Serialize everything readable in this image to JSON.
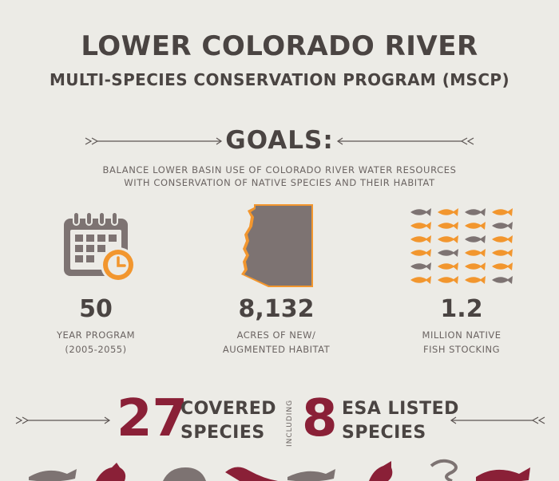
{
  "header": {
    "title": "LOWER COLORADO RIVER",
    "subtitle": "MULTI-SPECIES CONSERVATION PROGRAM (MSCP)"
  },
  "goals": {
    "heading": "GOALS:",
    "line1": "BALANCE LOWER BASIN USE OF COLORADO RIVER WATER RESOURCES",
    "line2": "WITH CONSERVATION OF NATIVE SPECIES AND THEIR HABITAT"
  },
  "stats": [
    {
      "number": "50",
      "label1": "YEAR PROGRAM",
      "label2": "(2005-2055)",
      "icon": "calendar-clock-icon"
    },
    {
      "number": "8,132",
      "label1": "ACRES OF NEW/",
      "label2": "AUGMENTED HABITAT",
      "icon": "arizona-map-icon"
    },
    {
      "number": "1.2",
      "label1": "MILLION NATIVE",
      "label2": "FISH STOCKING",
      "icon": "fish-grid-icon"
    }
  ],
  "species": {
    "covered_number": "27",
    "covered_label1": "COVERED",
    "covered_label2": "SPECIES",
    "including": "INCLUDING",
    "esa_number": "8",
    "esa_label1": "ESA LISTED",
    "esa_label2": "SPECIES"
  },
  "colors": {
    "background": "#ecebe6",
    "text_dark": "#4a4442",
    "icon_gray": "#7d7372",
    "orange": "#f2962e",
    "maroon": "#8a2037"
  }
}
